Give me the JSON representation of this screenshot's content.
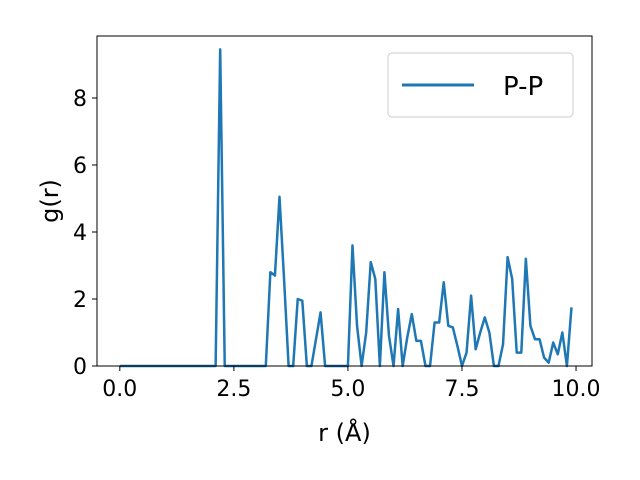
{
  "chart_data": {
    "type": "line",
    "xlabel": "r (Å)",
    "ylabel": "g(r)",
    "xlim": [
      -0.5,
      10.35
    ],
    "ylim": [
      0,
      9.85
    ],
    "xticks": [
      "0.0",
      "2.5",
      "5.0",
      "7.5",
      "10.0"
    ],
    "yticks": [
      "0",
      "2",
      "4",
      "6",
      "8"
    ],
    "grid": false,
    "legend_position": "top-right",
    "series": [
      {
        "name": "P-P",
        "color": "#1f77b4",
        "x": [
          0.0,
          0.1,
          0.2,
          0.3,
          0.4,
          0.5,
          0.6,
          0.7,
          0.8,
          0.9,
          1.0,
          1.1,
          1.2,
          1.3,
          1.4,
          1.5,
          1.6,
          1.7,
          1.8,
          1.9,
          2.0,
          2.1,
          2.2,
          2.3,
          2.4,
          2.5,
          2.6,
          2.7,
          2.8,
          2.9,
          3.0,
          3.1,
          3.2,
          3.3,
          3.4,
          3.5,
          3.6,
          3.7,
          3.8,
          3.9,
          4.0,
          4.1,
          4.2,
          4.3,
          4.4,
          4.5,
          4.6,
          4.7,
          4.8,
          4.9,
          5.0,
          5.1,
          5.2,
          5.3,
          5.4,
          5.5,
          5.6,
          5.7,
          5.8,
          5.9,
          6.0,
          6.1,
          6.2,
          6.3,
          6.4,
          6.5,
          6.6,
          6.7,
          6.8,
          6.9,
          7.0,
          7.1,
          7.2,
          7.3,
          7.4,
          7.5,
          7.6,
          7.7,
          7.8,
          7.9,
          8.0,
          8.1,
          8.2,
          8.3,
          8.4,
          8.5,
          8.6,
          8.7,
          8.8,
          8.9,
          9.0,
          9.1,
          9.2,
          9.3,
          9.4,
          9.5,
          9.6,
          9.7,
          9.8,
          9.9
        ],
        "y": [
          0,
          0,
          0,
          0,
          0,
          0,
          0,
          0,
          0,
          0,
          0,
          0,
          0,
          0,
          0,
          0,
          0,
          0,
          0,
          0,
          0,
          0,
          9.45,
          0,
          0,
          0,
          0,
          0,
          0,
          0,
          0,
          0,
          0,
          2.8,
          2.7,
          5.05,
          2.6,
          0,
          0,
          2.0,
          1.95,
          0,
          0,
          0.8,
          1.6,
          0,
          0,
          0,
          0,
          0,
          0,
          3.6,
          1.2,
          0,
          1.0,
          3.1,
          2.6,
          0,
          2.8,
          0.9,
          0,
          1.7,
          0,
          0.85,
          1.55,
          0.75,
          0.75,
          0,
          0,
          1.3,
          1.3,
          2.5,
          1.2,
          1.15,
          0.6,
          0,
          0.4,
          2.1,
          0.5,
          1.0,
          1.45,
          1.0,
          0,
          0,
          0.65,
          3.25,
          2.6,
          0.4,
          0.4,
          3.2,
          1.2,
          0.8,
          0.8,
          0.25,
          0.1,
          0.7,
          0.35,
          1.0,
          0,
          1.75
        ]
      }
    ]
  }
}
